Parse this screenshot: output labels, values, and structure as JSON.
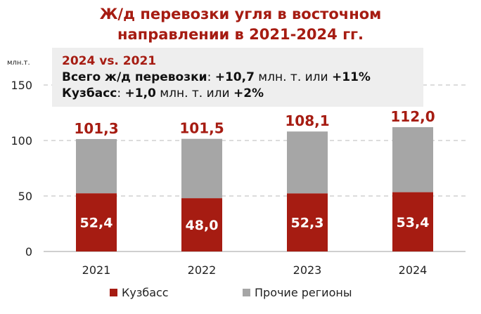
{
  "title": {
    "line1": "Ж/д перевозки угля в восточном",
    "line2": "направлении в 2021-2024 гг."
  },
  "info_box": {
    "heading": "2024 vs. 2021",
    "line1": {
      "label": "Всего ж/д перевозки",
      "sep": ": ",
      "value": "+10,7",
      "mid": " млн. т. или ",
      "pct": "+11%"
    },
    "line2": {
      "label": "Кузбасс",
      "sep": ": ",
      "value": "+1,0",
      "mid": " млн. т. или ",
      "pct": "+2%"
    }
  },
  "colors": {
    "kuzbass": "#a61c12",
    "other": "#a6a6a6",
    "title": "#a61c12",
    "grid": "#c8c8c8",
    "axis": "#bfbfbf"
  },
  "chart_data": {
    "type": "bar",
    "stacked": true,
    "ylabel": "млн.т.",
    "ylim": [
      0,
      150
    ],
    "yticks": [
      0,
      50,
      100,
      150
    ],
    "categories": [
      "2021",
      "2022",
      "2023",
      "2024"
    ],
    "series": [
      {
        "name": "Кузбасс",
        "values": [
          52.4,
          48.0,
          52.3,
          53.4
        ],
        "labels": [
          "52,4",
          "48,0",
          "52,3",
          "53,4"
        ]
      },
      {
        "name": "Прочие регионы",
        "values": [
          48.9,
          53.5,
          55.8,
          58.6
        ]
      }
    ],
    "totals": [
      101.3,
      101.5,
      108.1,
      112.0
    ],
    "total_labels": [
      "101,3",
      "101,5",
      "108,1",
      "112,0"
    ],
    "grid": "horizontal dashed",
    "legend": "bottom"
  }
}
